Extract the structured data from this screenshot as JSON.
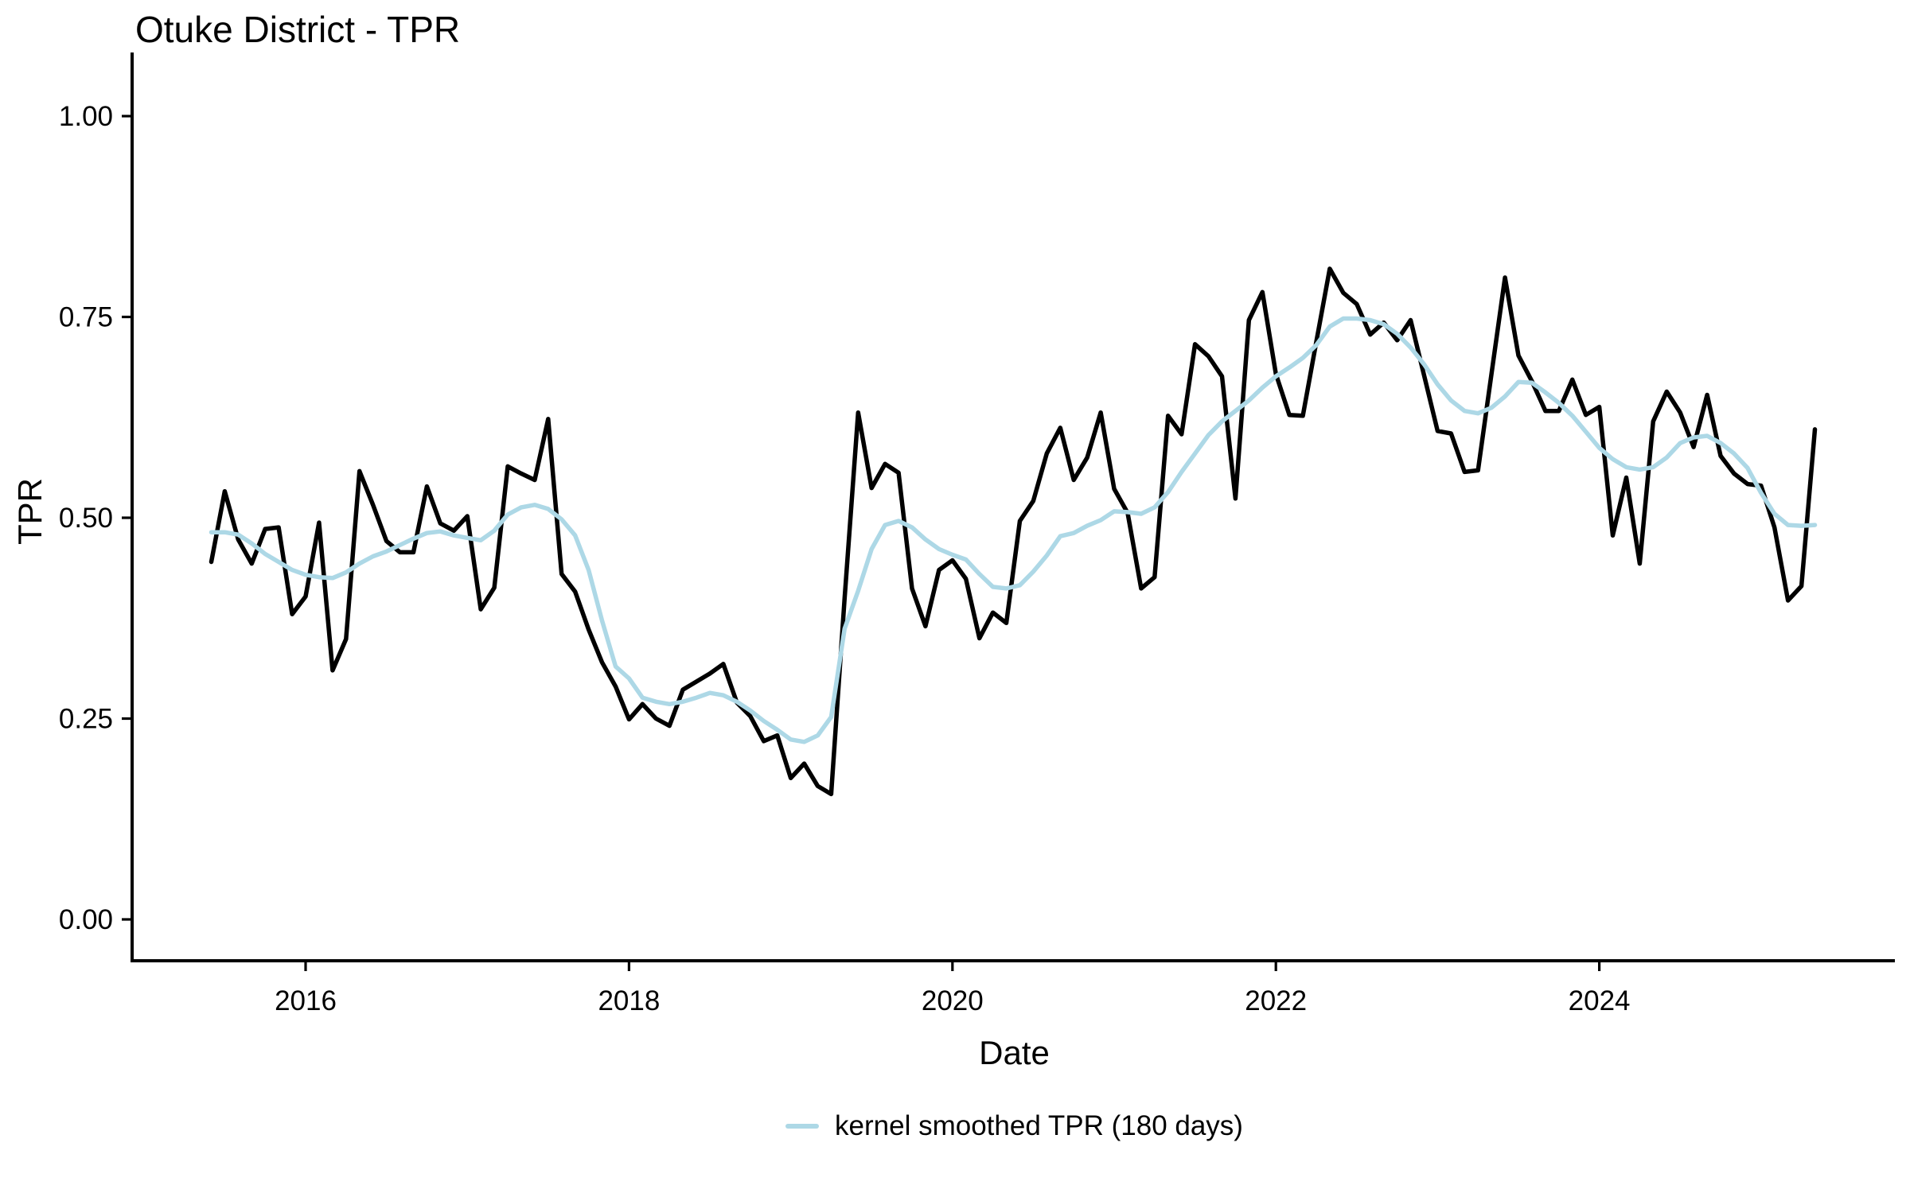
{
  "title": "Otuke District - TPR",
  "axes": {
    "y_label": "TPR",
    "x_label": "Date",
    "y_ticks": [
      "0.00",
      "0.25",
      "0.50",
      "0.75",
      "1.00"
    ],
    "x_ticks": [
      "2016",
      "2018",
      "2020",
      "2022",
      "2024"
    ]
  },
  "legend": {
    "label": "kernel smoothed TPR (180 days)",
    "swatch_color": "#add8e6"
  },
  "colors": {
    "raw_line": "#000000",
    "smoothed_line": "#add8e6",
    "axis": "#000000"
  },
  "chart_data": {
    "type": "line",
    "title": "Otuke District - TPR",
    "xlabel": "Date",
    "ylabel": "TPR",
    "grid": false,
    "legend_position": "bottom",
    "ylim": [
      0.0,
      1.0
    ],
    "y_tick_values": [
      0.0,
      0.25,
      0.5,
      0.75,
      1.0
    ],
    "x_tick_years": [
      2016,
      2018,
      2020,
      2022,
      2024
    ],
    "start_month": "2015-06",
    "end_month": "2025-05",
    "series": [
      {
        "name": "monthly TPR",
        "color": "#000000",
        "values": [
          0.445,
          0.533,
          0.473,
          0.443,
          0.486,
          0.488,
          0.38,
          0.402,
          0.494,
          0.31,
          0.349,
          0.558,
          0.516,
          0.471,
          0.457,
          0.457,
          0.539,
          0.493,
          0.484,
          0.502,
          0.386,
          0.413,
          0.564,
          0.555,
          0.547,
          0.623,
          0.43,
          0.408,
          0.361,
          0.32,
          0.29,
          0.249,
          0.268,
          0.25,
          0.241,
          0.286,
          0.296,
          0.306,
          0.318,
          0.27,
          0.253,
          0.222,
          0.229,
          0.176,
          0.194,
          0.166,
          0.156,
          0.4,
          0.631,
          0.537,
          0.567,
          0.556,
          0.412,
          0.365,
          0.435,
          0.447,
          0.424,
          0.35,
          0.382,
          0.369,
          0.496,
          0.521,
          0.58,
          0.612,
          0.547,
          0.575,
          0.631,
          0.536,
          0.506,
          0.412,
          0.426,
          0.627,
          0.604,
          0.716,
          0.701,
          0.676,
          0.524,
          0.746,
          0.781,
          0.679,
          0.628,
          0.627,
          0.719,
          0.81,
          0.78,
          0.766,
          0.728,
          0.743,
          0.721,
          0.746,
          0.677,
          0.608,
          0.605,
          0.557,
          0.559,
          0.679,
          0.799,
          0.702,
          0.67,
          0.633,
          0.633,
          0.672,
          0.628,
          0.638,
          0.478,
          0.55,
          0.443,
          0.62,
          0.657,
          0.631,
          0.588,
          0.653,
          0.577,
          0.555,
          0.542,
          0.54,
          0.488,
          0.397,
          0.415,
          0.61
        ]
      },
      {
        "name": "kernel smoothed TPR (180 days)",
        "color": "#add8e6",
        "values": [
          0.482,
          0.482,
          0.479,
          0.468,
          0.455,
          0.445,
          0.435,
          0.429,
          0.426,
          0.425,
          0.432,
          0.443,
          0.452,
          0.458,
          0.466,
          0.474,
          0.481,
          0.483,
          0.478,
          0.475,
          0.472,
          0.484,
          0.504,
          0.513,
          0.516,
          0.511,
          0.498,
          0.478,
          0.435,
          0.372,
          0.315,
          0.3,
          0.276,
          0.271,
          0.268,
          0.271,
          0.276,
          0.282,
          0.279,
          0.271,
          0.26,
          0.247,
          0.236,
          0.224,
          0.221,
          0.229,
          0.252,
          0.362,
          0.409,
          0.461,
          0.491,
          0.496,
          0.488,
          0.473,
          0.461,
          0.454,
          0.448,
          0.43,
          0.414,
          0.412,
          0.416,
          0.433,
          0.453,
          0.477,
          0.481,
          0.49,
          0.497,
          0.508,
          0.507,
          0.505,
          0.513,
          0.532,
          0.557,
          0.58,
          0.603,
          0.62,
          0.633,
          0.646,
          0.662,
          0.676,
          0.687,
          0.699,
          0.715,
          0.738,
          0.748,
          0.748,
          0.746,
          0.741,
          0.729,
          0.712,
          0.691,
          0.666,
          0.646,
          0.633,
          0.63,
          0.637,
          0.651,
          0.669,
          0.668,
          0.656,
          0.643,
          0.627,
          0.607,
          0.587,
          0.573,
          0.563,
          0.56,
          0.563,
          0.575,
          0.593,
          0.6,
          0.602,
          0.593,
          0.58,
          0.562,
          0.531,
          0.505,
          0.491,
          0.49,
          0.491
        ]
      }
    ]
  }
}
